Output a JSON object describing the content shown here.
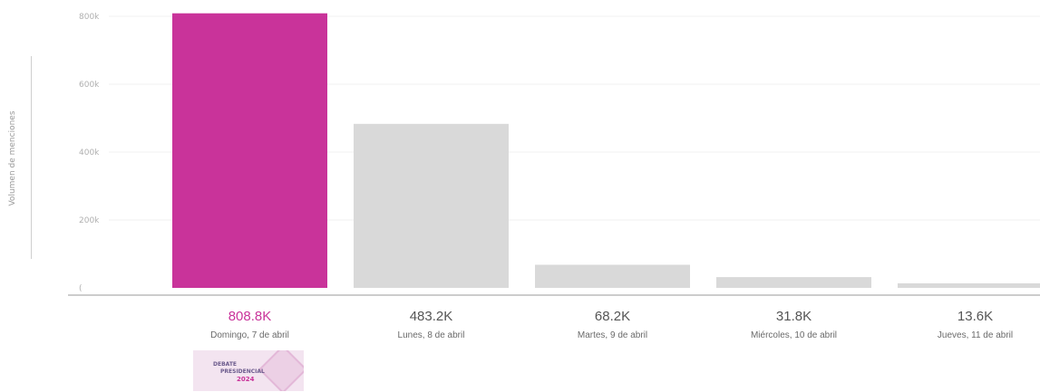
{
  "chart_data": {
    "type": "bar",
    "ylabel": "Volumen de menciones",
    "ylim": [
      0,
      800000
    ],
    "yticks": [
      0,
      200000,
      400000,
      600000,
      800000
    ],
    "ytick_labels": [
      "(",
      "200k",
      "400k",
      "600k",
      "800k"
    ],
    "grid": true,
    "categories": [
      "Domingo, 7 de abril",
      "Lunes, 8 de abril",
      "Martes, 9 de abril",
      "Miércoles, 10 de abril",
      "Jueves, 11 de abril"
    ],
    "values": [
      808800,
      483200,
      68200,
      31800,
      13600
    ],
    "value_labels": [
      "808.8K",
      "483.2K",
      "68.2K",
      "31.8K",
      "13.6K"
    ],
    "highlight_index": 0,
    "colors": {
      "highlight": "#c9339a",
      "default": "#d9d9d9",
      "label": "#6a6a6a",
      "grid": "#f0f0f0",
      "axis": "#9a9a9a"
    }
  },
  "logo": {
    "text_1": "DEBATE",
    "text_2": "PRESIDENCIAL",
    "text_3": "2024"
  }
}
